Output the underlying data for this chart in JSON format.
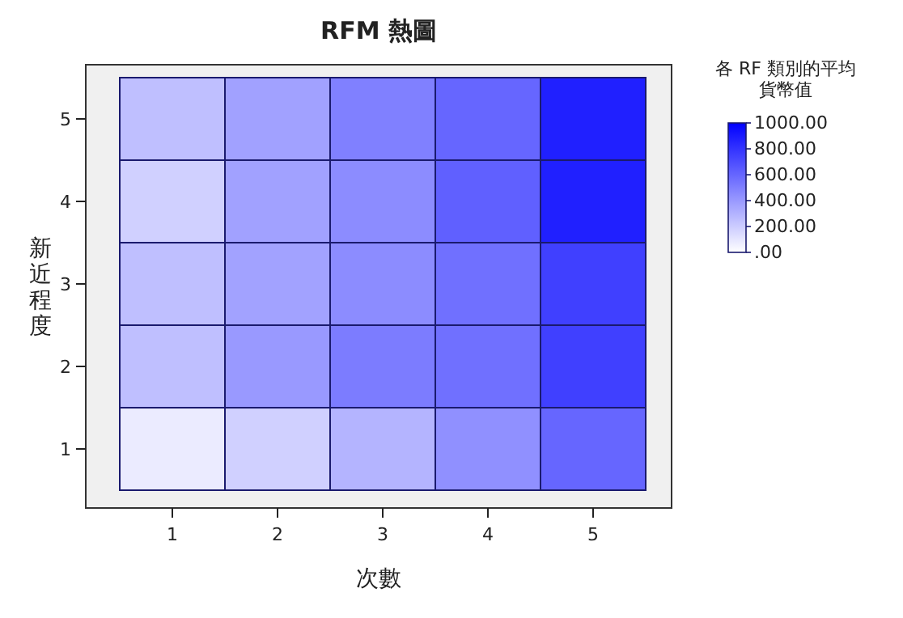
{
  "chart_data": {
    "type": "heatmap",
    "title": "RFM 熱圖",
    "xlabel": "次數",
    "ylabel": "新近程度",
    "legend_title": "各 RF 類別的平均貨幣值",
    "categories": [
      "1",
      "2",
      "3",
      "4",
      "5"
    ],
    "y_categories": [
      "5",
      "4",
      "3",
      "2",
      "1"
    ],
    "cells": [
      [
        250,
        370,
        500,
        600,
        875
      ],
      [
        185,
        370,
        450,
        625,
        875
      ],
      [
        250,
        365,
        450,
        560,
        750
      ],
      [
        250,
        400,
        515,
        560,
        750
      ],
      [
        80,
        185,
        295,
        435,
        600
      ]
    ],
    "clim": [
      0,
      1000
    ],
    "cticks": [
      {
        "value": 1000,
        "label": "1000.00"
      },
      {
        "value": 800,
        "label": "800.00"
      },
      {
        "value": 600,
        "label": "600.00"
      },
      {
        "value": 400,
        "label": "400.00"
      },
      {
        "value": 200,
        "label": "200.00"
      },
      {
        "value": 0,
        "label": ".00"
      }
    ]
  }
}
